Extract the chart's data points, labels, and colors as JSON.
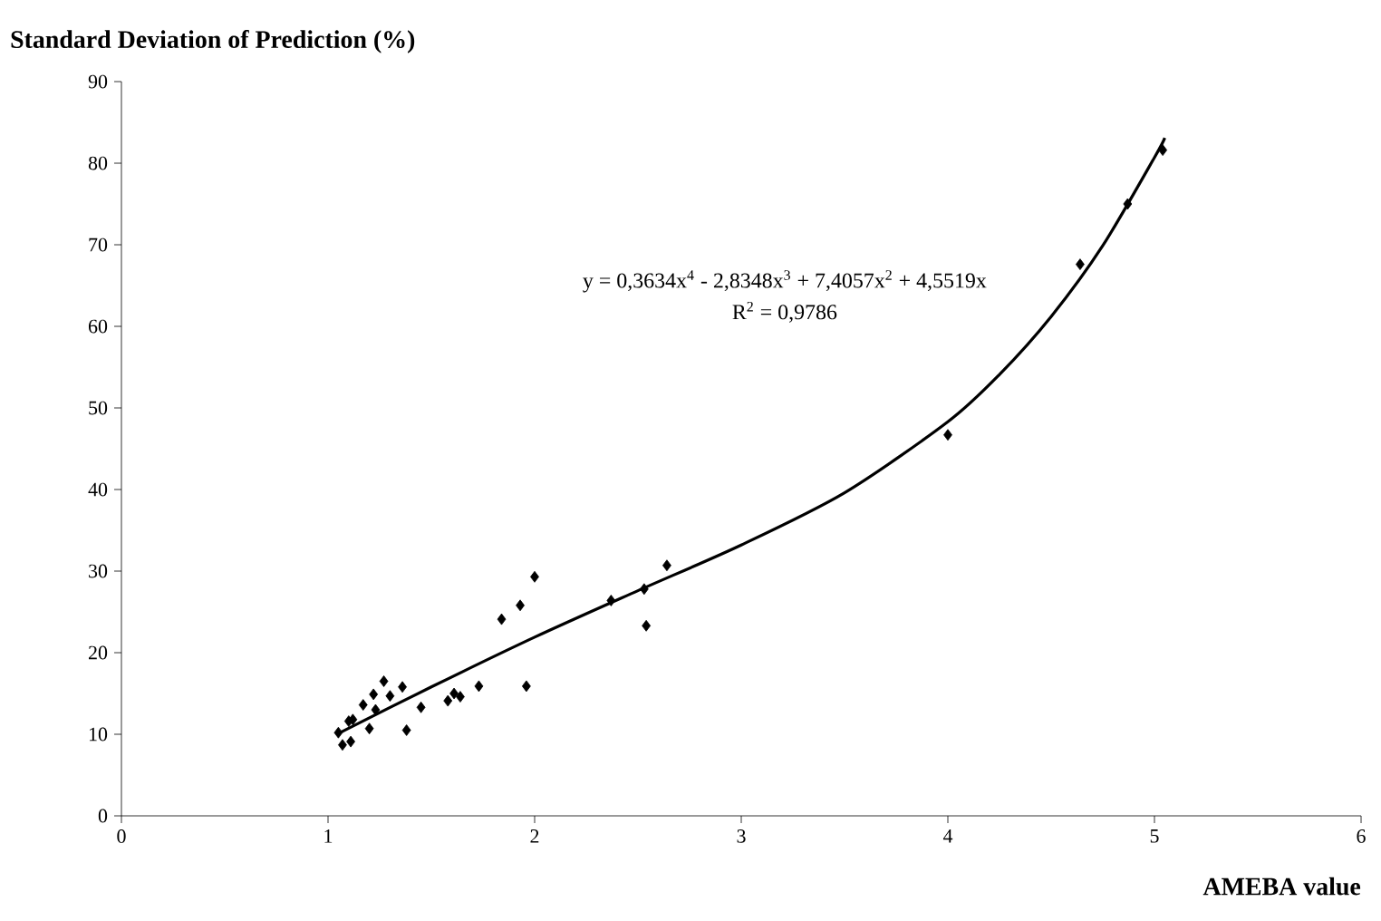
{
  "chart_data": {
    "type": "scatter",
    "title": "Standard Deviation of Prediction (%)",
    "xlabel": "AMEBA value",
    "xlim": [
      0,
      6
    ],
    "xticks": [
      0,
      1,
      2,
      3,
      4,
      5,
      6
    ],
    "ylim": [
      0,
      90
    ],
    "yticks": [
      0,
      10,
      20,
      30,
      40,
      50,
      60,
      70,
      80,
      90
    ],
    "grid": false,
    "marker": "diamond",
    "annotations": [
      "y = 0,3634x$^{4}$ - 2,8348x$^{3}$ + 7,4057x$^{2}$ + 4,5519x",
      "R$^{2}$ = 0,9786"
    ],
    "series": [
      {
        "color": "#000000",
        "x": [
          1.05,
          1.07,
          1.11,
          1.1,
          1.12,
          1.17,
          1.2,
          1.22,
          1.23,
          1.27,
          1.3,
          1.36,
          1.38,
          1.45,
          1.58,
          1.61,
          1.64,
          1.73,
          1.96,
          1.84,
          1.93,
          2.0,
          2.37,
          2.53,
          2.54,
          2.64,
          4.0,
          4.64,
          4.87,
          5.04
        ],
        "values": [
          10.2,
          8.7,
          9.1,
          11.6,
          11.8,
          13.6,
          10.7,
          14.9,
          13.0,
          16.5,
          14.7,
          15.8,
          10.5,
          13.3,
          14.1,
          15.0,
          14.6,
          15.9,
          15.9,
          24.1,
          25.8,
          29.3,
          26.4,
          27.8,
          23.3,
          30.7,
          46.7,
          67.6,
          75.0,
          81.6
        ]
      },
      {
        "type": "line",
        "color": "#000000",
        "marker": "none",
        "x": [
          1.05,
          1.5,
          2,
          2.5,
          3,
          3.5,
          4,
          4.25,
          4.5,
          4.75,
          5,
          5.05
        ],
        "values": [
          10.1,
          15.8,
          21.9,
          27.6,
          33.2,
          39.6,
          48.3,
          54.1,
          61.2,
          69.9,
          80.7,
          83.1
        ]
      }
    ]
  }
}
